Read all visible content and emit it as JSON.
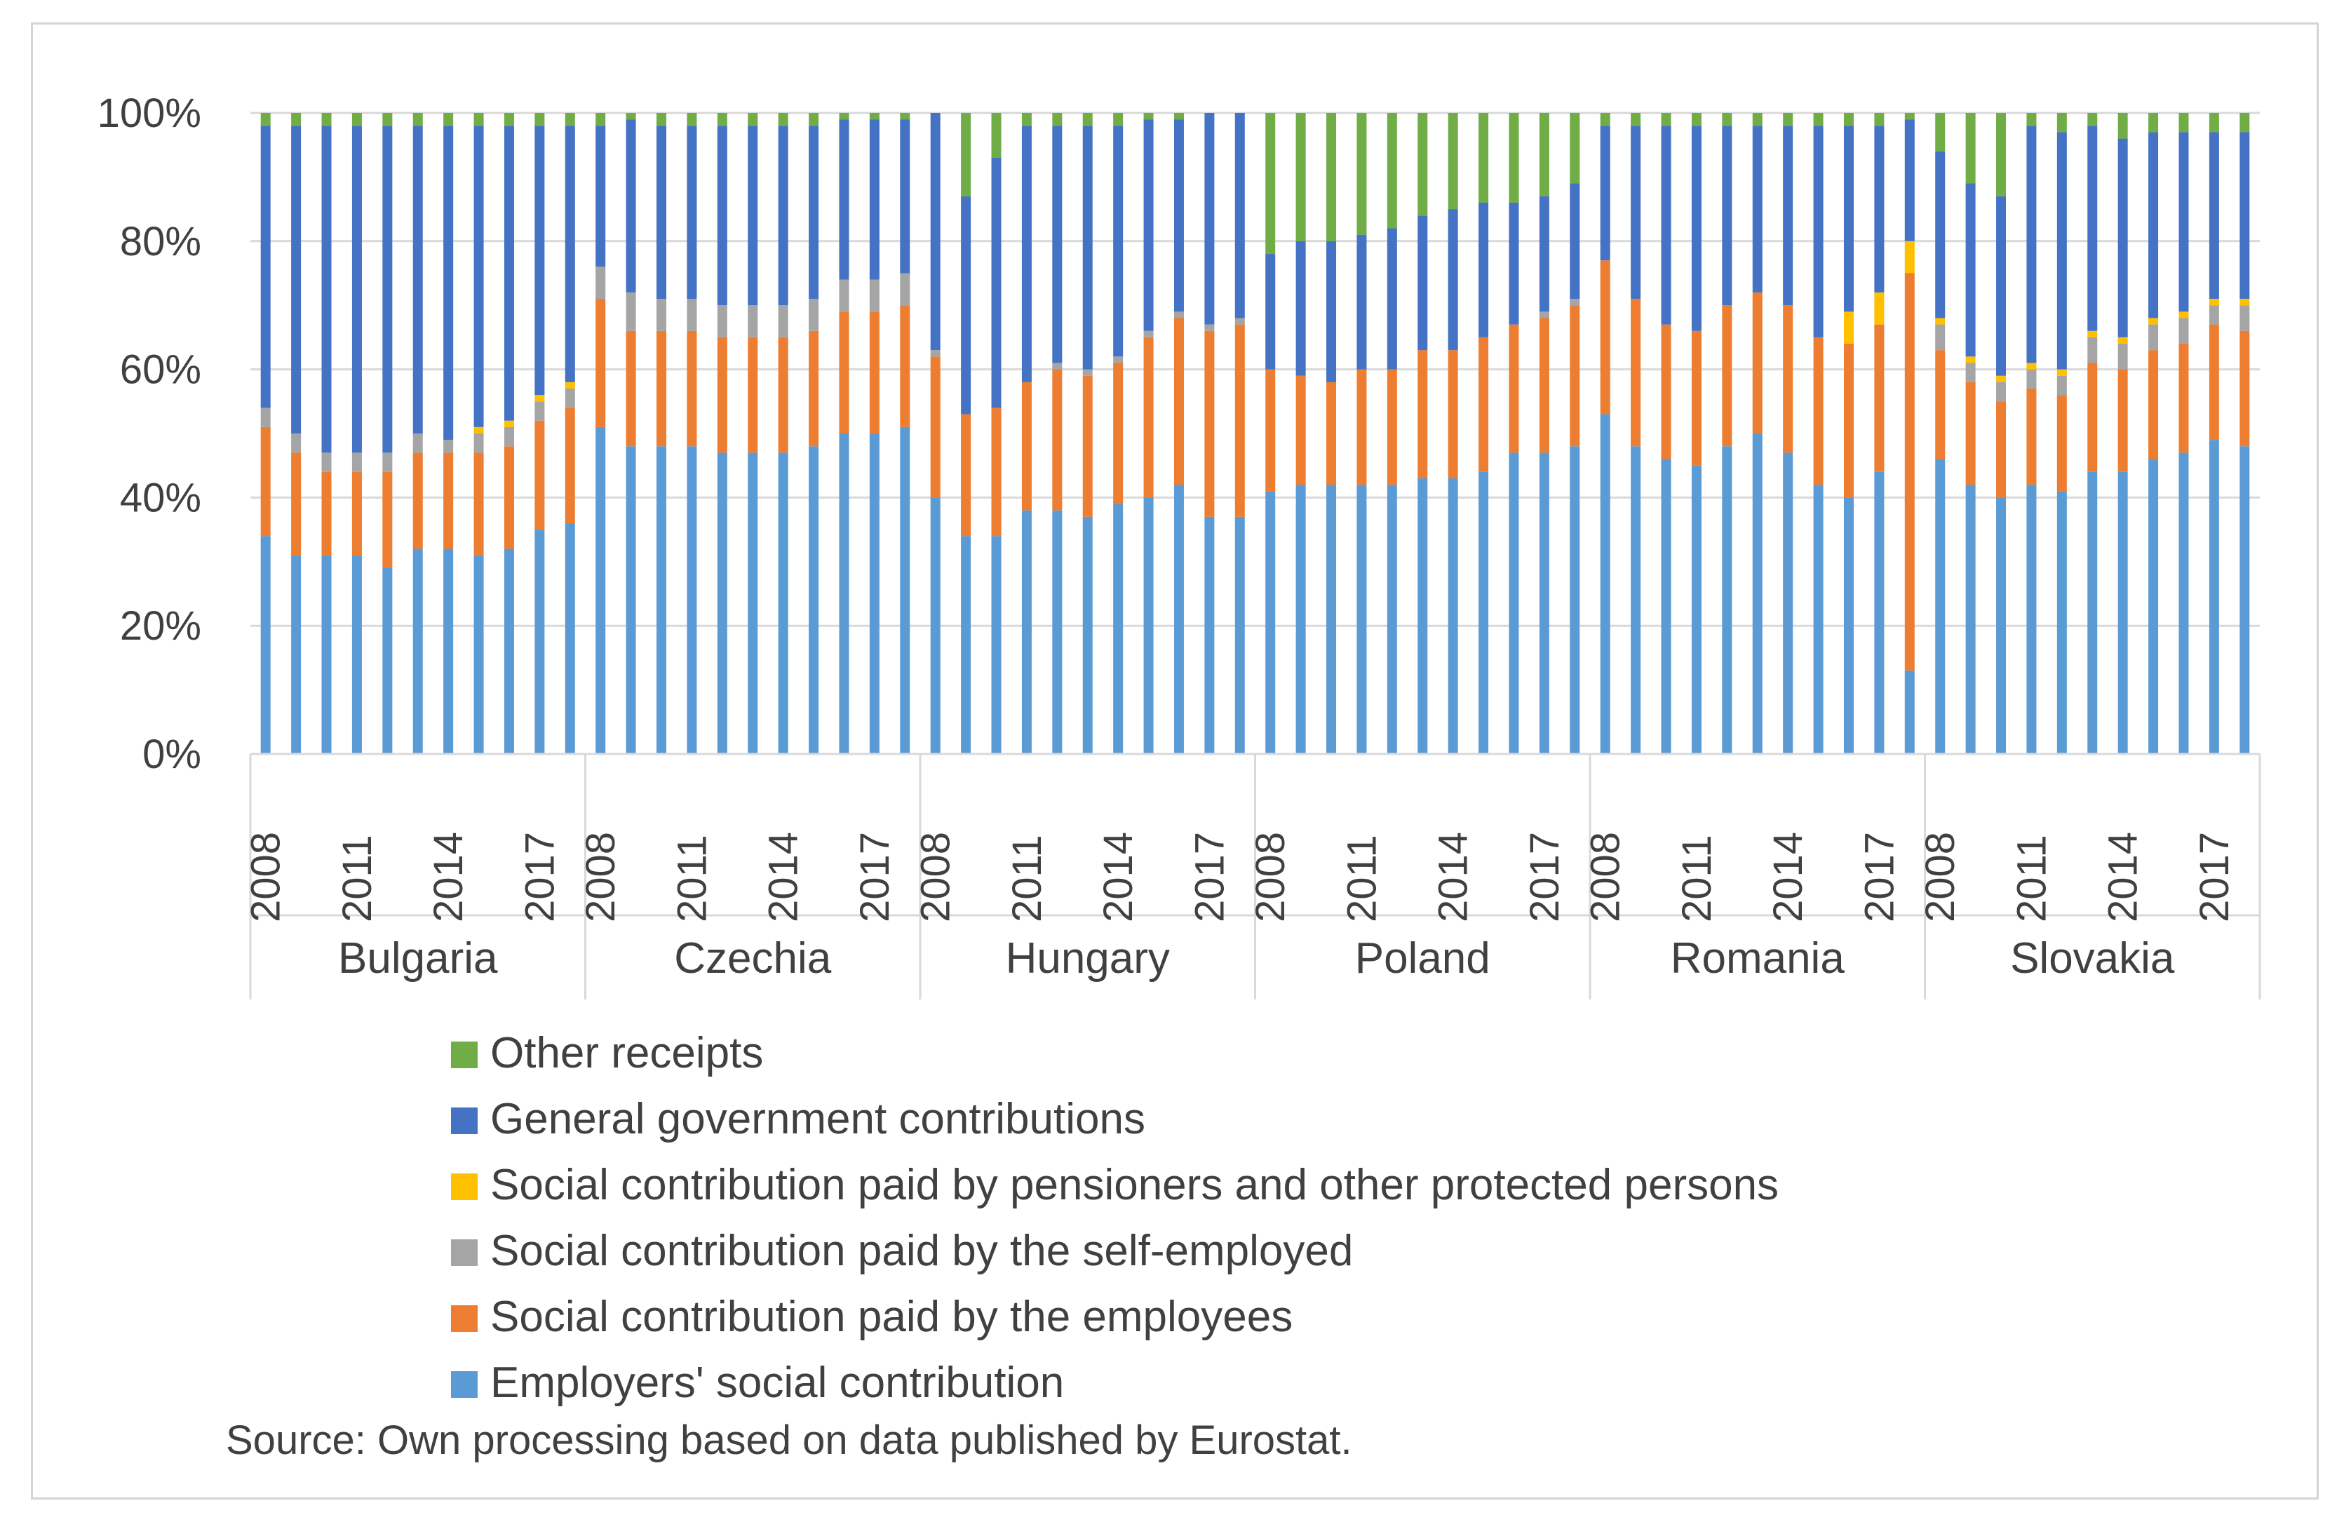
{
  "chart_data": {
    "type": "bar",
    "stacked": true,
    "normalized": true,
    "years": [
      "2008",
      "2009",
      "2010",
      "2011",
      "2012",
      "2013",
      "2014",
      "2015",
      "2016",
      "2017",
      "2018"
    ],
    "tick_years": [
      "2008",
      "2011",
      "2014",
      "2017"
    ],
    "ylim": [
      0,
      100
    ],
    "y_ticks": [
      "0%",
      "20%",
      "40%",
      "60%",
      "80%",
      "100%"
    ],
    "grid": true,
    "legend_position": "bottom",
    "series": [
      {
        "key": "employers",
        "name": "Employers' social contribution",
        "color": "#5B9BD5"
      },
      {
        "key": "employees",
        "name": "Social contribution paid by the employees",
        "color": "#ED7D31"
      },
      {
        "key": "self_employed",
        "name": "Social contribution paid by the self-employed",
        "color": "#A5A5A5"
      },
      {
        "key": "pensioners",
        "name": "Social contribution paid by pensioners and other protected persons",
        "color": "#FFC000"
      },
      {
        "key": "government",
        "name": "General government contributions",
        "color": "#4472C4"
      },
      {
        "key": "other",
        "name": "Other receipts",
        "color": "#70AD47"
      }
    ],
    "countries": [
      {
        "name": "Bulgaria",
        "employers": [
          34,
          31,
          31,
          31,
          29,
          32,
          32,
          31,
          32,
          35,
          36
        ],
        "employees": [
          17,
          16,
          13,
          13,
          15,
          15,
          15,
          16,
          16,
          17,
          18
        ],
        "self_employed": [
          3,
          3,
          3,
          3,
          3,
          3,
          2,
          3,
          3,
          3,
          3
        ],
        "pensioners": [
          0,
          0,
          0,
          0,
          0,
          0,
          0,
          1,
          1,
          1,
          1
        ],
        "government": [
          44,
          48,
          51,
          51,
          51,
          48,
          49,
          47,
          46,
          42,
          40
        ],
        "other": [
          2,
          2,
          2,
          2,
          2,
          2,
          2,
          2,
          2,
          2,
          2
        ]
      },
      {
        "name": "Czechia",
        "employers": [
          51,
          48,
          48,
          48,
          47,
          47,
          47,
          48,
          50,
          50,
          51
        ],
        "employees": [
          20,
          18,
          18,
          18,
          18,
          18,
          18,
          18,
          19,
          19,
          19
        ],
        "self_employed": [
          5,
          6,
          5,
          5,
          5,
          5,
          5,
          5,
          5,
          5,
          5
        ],
        "pensioners": [
          0,
          0,
          0,
          0,
          0,
          0,
          0,
          0,
          0,
          0,
          0
        ],
        "government": [
          22,
          27,
          27,
          27,
          28,
          28,
          28,
          27,
          25,
          25,
          24
        ],
        "other": [
          2,
          1,
          2,
          2,
          2,
          2,
          2,
          2,
          1,
          1,
          1
        ]
      },
      {
        "name": "Hungary",
        "employers": [
          40,
          34,
          34,
          38,
          38,
          37,
          39,
          40,
          42,
          37,
          37
        ],
        "employees": [
          22,
          19,
          20,
          20,
          22,
          22,
          22,
          25,
          26,
          29,
          30
        ],
        "self_employed": [
          1,
          0,
          0,
          0,
          1,
          1,
          1,
          1,
          1,
          1,
          1
        ],
        "pensioners": [
          0,
          0,
          0,
          0,
          0,
          0,
          0,
          0,
          0,
          0,
          0
        ],
        "government": [
          37,
          34,
          39,
          40,
          37,
          38,
          36,
          33,
          30,
          33,
          32
        ],
        "other": [
          0,
          13,
          7,
          2,
          2,
          2,
          2,
          1,
          1,
          0,
          0
        ]
      },
      {
        "name": "Poland",
        "employers": [
          41,
          42,
          42,
          42,
          42,
          43,
          43,
          44,
          47,
          47,
          48
        ],
        "employees": [
          19,
          17,
          16,
          18,
          18,
          20,
          20,
          21,
          20,
          21,
          22
        ],
        "self_employed": [
          0,
          0,
          0,
          0,
          0,
          0,
          0,
          0,
          0,
          1,
          1
        ],
        "pensioners": [
          0,
          0,
          0,
          0,
          0,
          0,
          0,
          0,
          0,
          0,
          0
        ],
        "government": [
          18,
          21,
          22,
          21,
          22,
          21,
          22,
          21,
          19,
          18,
          18
        ],
        "other": [
          22,
          20,
          20,
          19,
          18,
          16,
          15,
          14,
          14,
          13,
          11
        ]
      },
      {
        "name": "Romania",
        "employers": [
          53,
          48,
          46,
          45,
          48,
          50,
          47,
          42,
          40,
          44,
          13
        ],
        "employees": [
          24,
          23,
          21,
          21,
          22,
          22,
          23,
          23,
          24,
          23,
          62
        ],
        "self_employed": [
          0,
          0,
          0,
          0,
          0,
          0,
          0,
          0,
          0,
          0,
          0
        ],
        "pensioners": [
          0,
          0,
          0,
          0,
          0,
          0,
          0,
          0,
          5,
          5,
          5
        ],
        "government": [
          21,
          27,
          31,
          32,
          28,
          26,
          28,
          33,
          29,
          26,
          19
        ],
        "other": [
          2,
          2,
          2,
          2,
          2,
          2,
          2,
          2,
          2,
          2,
          1
        ]
      },
      {
        "name": "Slovakia",
        "employers": [
          46,
          42,
          40,
          42,
          41,
          44,
          44,
          46,
          47,
          49,
          48
        ],
        "employees": [
          17,
          16,
          15,
          15,
          15,
          17,
          16,
          17,
          17,
          18,
          18
        ],
        "self_employed": [
          4,
          3,
          3,
          3,
          3,
          4,
          4,
          4,
          4,
          3,
          4
        ],
        "pensioners": [
          1,
          1,
          1,
          1,
          1,
          1,
          1,
          1,
          1,
          1,
          1
        ],
        "government": [
          26,
          27,
          28,
          37,
          37,
          32,
          31,
          29,
          28,
          26,
          26
        ],
        "other": [
          6,
          11,
          13,
          2,
          3,
          2,
          4,
          3,
          3,
          3,
          3
        ]
      }
    ],
    "source": "Source:  Own processing based on data published by Eurostat."
  }
}
